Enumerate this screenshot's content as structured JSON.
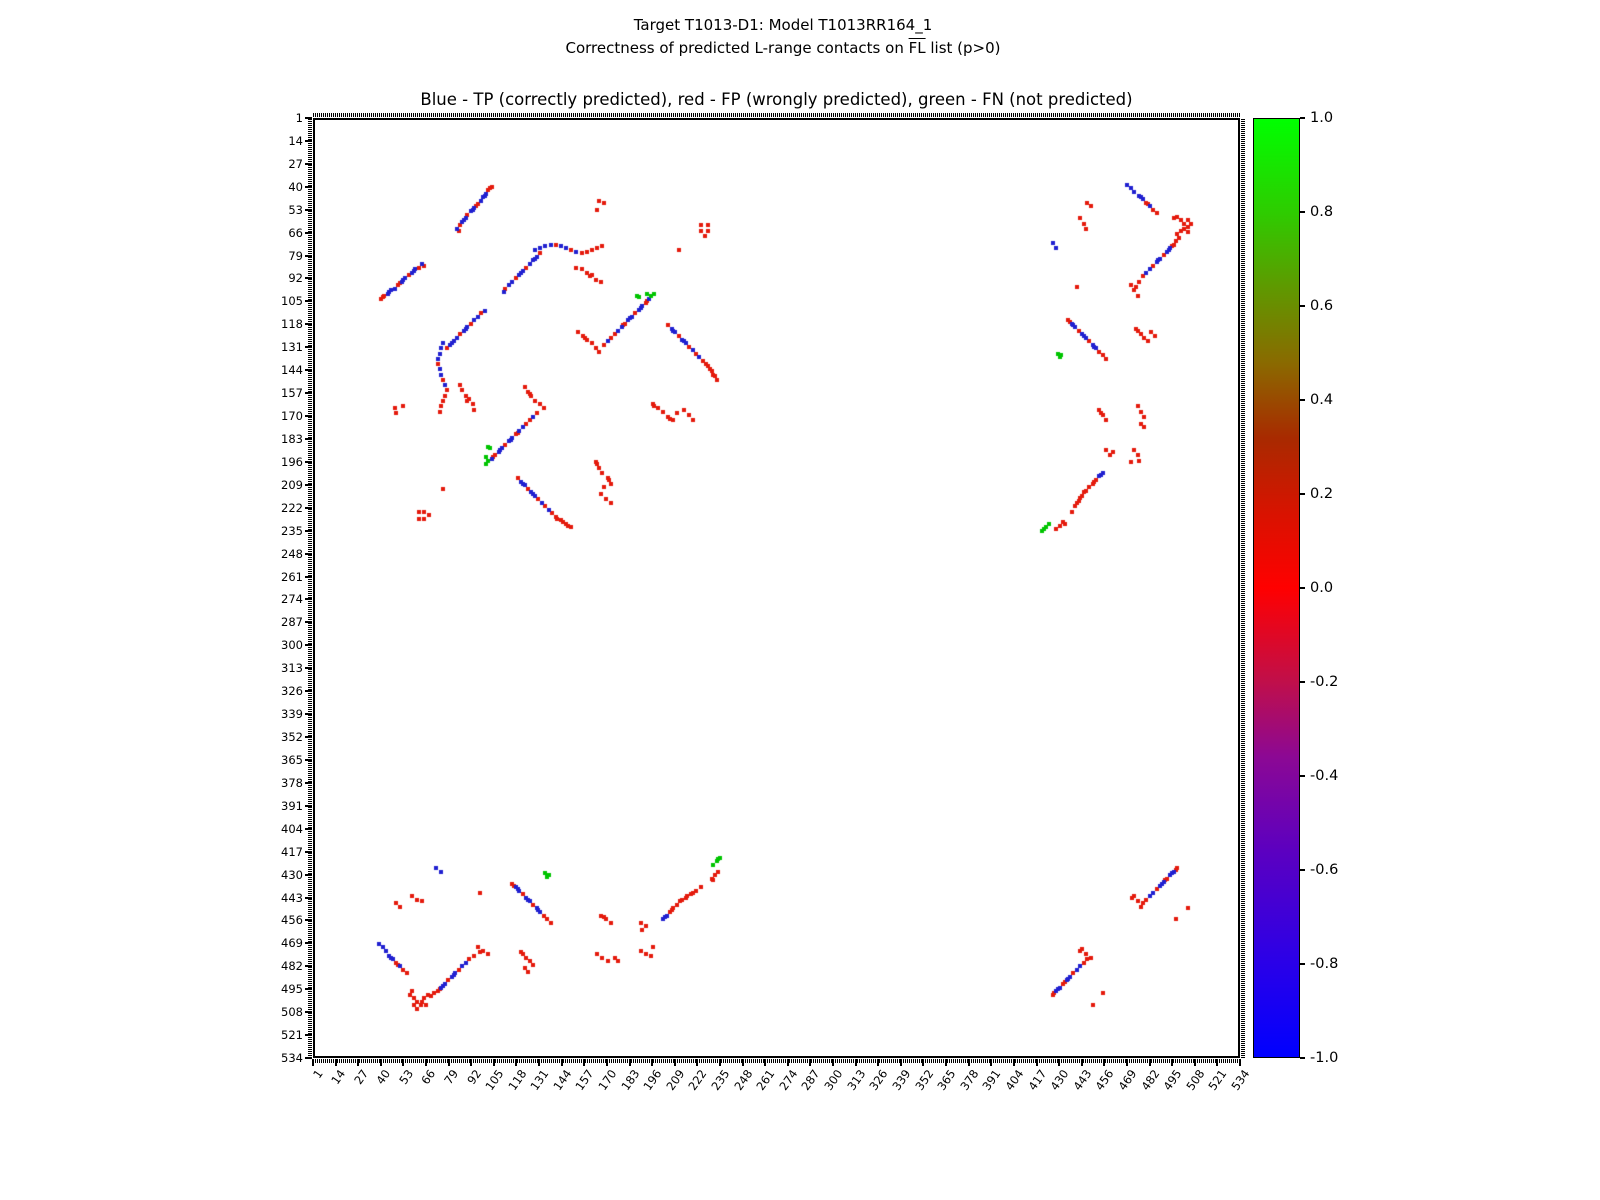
{
  "figure": {
    "suptitle1": "Target T1013-D1: Model T1013RR164_1",
    "suptitle2_pre": "Correctness of predicted L-range contacts on ",
    "suptitle2_fl": "FL",
    "suptitle2_post": " list (p>0)",
    "axes_title": "Blue - TP (correctly predicted), red - FP (wrongly predicted), green - FN (not predicted)"
  },
  "chart_data": {
    "type": "scatter",
    "title": "Blue - TP (correctly predicted), red - FP (wrongly predicted), green - FN (not predicted)",
    "xlabel": "",
    "ylabel": "",
    "axis_range": [
      1,
      534
    ],
    "y_inverted": true,
    "grid": false,
    "symmetric_mirrored": true,
    "marker": "square",
    "marker_px": 4,
    "axis_ticks": [
      1,
      14,
      27,
      40,
      53,
      66,
      79,
      92,
      105,
      118,
      131,
      144,
      157,
      170,
      183,
      196,
      209,
      222,
      235,
      248,
      261,
      274,
      287,
      300,
      313,
      326,
      339,
      352,
      365,
      378,
      391,
      404,
      417,
      430,
      443,
      456,
      469,
      482,
      495,
      508,
      521,
      534
    ],
    "series": [
      {
        "name": "TP",
        "label": "correctly predicted",
        "color": "#2020d0",
        "points": [
          [
            43,
            100
          ],
          [
            44,
            99
          ],
          [
            45,
            98
          ],
          [
            47,
            97
          ],
          [
            51,
            93
          ],
          [
            52,
            92
          ],
          [
            53,
            91
          ],
          [
            57,
            88
          ],
          [
            58,
            87
          ],
          [
            59,
            86
          ],
          [
            63,
            83
          ],
          [
            75,
            128
          ],
          [
            74,
            131
          ],
          [
            73,
            134
          ],
          [
            72,
            137
          ],
          [
            73,
            143
          ],
          [
            74,
            146
          ],
          [
            76,
            152
          ],
          [
            79,
            129
          ],
          [
            80,
            128
          ],
          [
            81,
            127
          ],
          [
            83,
            125
          ],
          [
            87,
            121
          ],
          [
            88,
            120
          ],
          [
            89,
            119
          ],
          [
            93,
            115
          ],
          [
            95,
            113
          ],
          [
            99,
            110
          ],
          [
            103,
            194
          ],
          [
            107,
            190
          ],
          [
            108,
            189
          ],
          [
            109,
            188
          ],
          [
            113,
            184
          ],
          [
            114,
            183
          ],
          [
            115,
            182
          ],
          [
            119,
            178
          ],
          [
            121,
            176
          ],
          [
            127,
            170
          ],
          [
            120,
            207
          ],
          [
            121,
            208
          ],
          [
            122,
            209
          ],
          [
            126,
            213
          ],
          [
            127,
            214
          ],
          [
            128,
            215
          ],
          [
            132,
            219
          ],
          [
            136,
            223
          ],
          [
            38,
            470
          ],
          [
            40,
            472
          ],
          [
            42,
            474
          ],
          [
            44,
            477
          ],
          [
            45,
            478
          ],
          [
            46,
            479
          ],
          [
            50,
            483
          ],
          [
            74,
            495
          ],
          [
            75,
            494
          ],
          [
            76,
            493
          ],
          [
            80,
            489
          ],
          [
            81,
            488
          ],
          [
            82,
            487
          ],
          [
            86,
            483
          ],
          [
            88,
            481
          ],
          [
            71,
            427
          ],
          [
            74,
            429
          ],
          [
            117,
            438
          ],
          [
            118,
            439
          ],
          [
            119,
            440
          ],
          [
            123,
            444
          ],
          [
            124,
            445
          ],
          [
            125,
            446
          ],
          [
            129,
            450
          ],
          [
            130,
            451
          ],
          [
            131,
            452
          ],
          [
            202,
            456
          ],
          [
            203,
            455
          ],
          [
            204,
            454
          ],
          [
            429,
            497
          ],
          [
            430,
            496
          ],
          [
            431,
            495
          ],
          [
            435,
            491
          ],
          [
            436,
            490
          ],
          [
            437,
            489
          ],
          [
            441,
            485
          ],
          [
            443,
            483
          ]
        ]
      },
      {
        "name": "FP",
        "label": "wrongly predicted",
        "color": "#e41a0c",
        "points": [
          [
            39,
            103
          ],
          [
            40,
            102
          ],
          [
            41,
            101
          ],
          [
            49,
            95
          ],
          [
            50,
            94
          ],
          [
            55,
            89
          ],
          [
            61,
            85
          ],
          [
            64,
            84
          ],
          [
            47,
            165
          ],
          [
            48,
            168
          ],
          [
            52,
            164
          ],
          [
            61,
            224
          ],
          [
            61,
            228
          ],
          [
            64,
            224
          ],
          [
            64,
            228
          ],
          [
            67,
            226
          ],
          [
            72,
            140
          ],
          [
            75,
            149
          ],
          [
            77,
            155
          ],
          [
            76,
            158
          ],
          [
            75,
            161
          ],
          [
            74,
            164
          ],
          [
            73,
            167
          ],
          [
            75,
            211
          ],
          [
            77,
            131
          ],
          [
            85,
            123
          ],
          [
            91,
            117
          ],
          [
            97,
            111
          ],
          [
            85,
            152
          ],
          [
            86,
            155
          ],
          [
            88,
            158
          ],
          [
            89,
            161
          ],
          [
            90,
            160
          ],
          [
            92,
            163
          ],
          [
            93,
            166
          ],
          [
            104,
            193
          ],
          [
            105,
            192
          ],
          [
            111,
            186
          ],
          [
            117,
            180
          ],
          [
            118,
            179
          ],
          [
            123,
            174
          ],
          [
            125,
            172
          ],
          [
            129,
            168
          ],
          [
            122,
            153
          ],
          [
            124,
            156
          ],
          [
            125,
            157
          ],
          [
            126,
            158
          ],
          [
            128,
            161
          ],
          [
            131,
            163
          ],
          [
            133,
            165
          ],
          [
            118,
            205
          ],
          [
            124,
            211
          ],
          [
            130,
            217
          ],
          [
            134,
            221
          ],
          [
            138,
            225
          ],
          [
            140,
            227
          ],
          [
            141,
            228
          ],
          [
            143,
            229
          ],
          [
            144,
            230
          ],
          [
            146,
            231
          ],
          [
            147,
            232
          ],
          [
            149,
            233
          ],
          [
            163,
            196
          ],
          [
            164,
            197
          ],
          [
            165,
            199
          ],
          [
            167,
            202
          ],
          [
            170,
            205
          ],
          [
            171,
            206
          ],
          [
            172,
            208
          ],
          [
            168,
            210
          ],
          [
            166,
            214
          ],
          [
            169,
            217
          ],
          [
            172,
            219
          ],
          [
            48,
            481
          ],
          [
            49,
            482
          ],
          [
            52,
            485
          ],
          [
            54,
            487
          ],
          [
            56,
            499
          ],
          [
            57,
            497
          ],
          [
            58,
            501
          ],
          [
            58,
            505
          ],
          [
            60,
            503
          ],
          [
            60,
            507
          ],
          [
            62,
            505
          ],
          [
            63,
            503
          ],
          [
            64,
            501
          ],
          [
            65,
            505
          ],
          [
            66,
            499
          ],
          [
            68,
            500
          ],
          [
            70,
            498
          ],
          [
            48,
            447
          ],
          [
            50,
            449
          ],
          [
            57,
            443
          ],
          [
            60,
            445
          ],
          [
            63,
            446
          ],
          [
            72,
            497
          ],
          [
            73,
            496
          ],
          [
            78,
            491
          ],
          [
            84,
            485
          ],
          [
            90,
            479
          ],
          [
            93,
            477
          ],
          [
            96,
            475
          ],
          [
            95,
            472
          ],
          [
            98,
            474
          ],
          [
            101,
            476
          ],
          [
            96,
            441
          ],
          [
            115,
            436
          ],
          [
            116,
            437
          ],
          [
            121,
            442
          ],
          [
            127,
            448
          ],
          [
            133,
            454
          ],
          [
            135,
            456
          ],
          [
            137,
            458
          ],
          [
            120,
            475
          ],
          [
            121,
            476
          ],
          [
            123,
            478
          ],
          [
            125,
            480
          ],
          [
            127,
            482
          ],
          [
            122,
            484
          ],
          [
            124,
            486
          ],
          [
            166,
            454
          ],
          [
            168,
            455
          ],
          [
            169,
            456
          ],
          [
            172,
            458
          ],
          [
            164,
            476
          ],
          [
            167,
            478
          ],
          [
            170,
            480
          ],
          [
            174,
            478
          ],
          [
            176,
            480
          ],
          [
            189,
            458
          ],
          [
            192,
            460
          ],
          [
            190,
            462
          ],
          [
            189,
            474
          ],
          [
            192,
            476
          ],
          [
            195,
            477
          ],
          [
            196,
            472
          ],
          [
            206,
            452
          ],
          [
            207,
            451
          ],
          [
            208,
            450
          ],
          [
            210,
            448
          ],
          [
            212,
            446
          ],
          [
            213,
            445
          ],
          [
            215,
            444
          ],
          [
            216,
            443
          ],
          [
            218,
            442
          ],
          [
            219,
            441
          ],
          [
            221,
            440
          ],
          [
            224,
            438
          ],
          [
            230,
            433
          ],
          [
            231,
            434
          ],
          [
            232,
            431
          ],
          [
            234,
            429
          ],
          [
            427,
            499
          ],
          [
            428,
            498
          ],
          [
            433,
            493
          ],
          [
            434,
            492
          ],
          [
            439,
            487
          ],
          [
            445,
            481
          ],
          [
            447,
            479
          ],
          [
            443,
            474
          ],
          [
            444,
            473
          ],
          [
            446,
            476
          ],
          [
            449,
            478
          ],
          [
            450,
            505
          ],
          [
            456,
            498
          ]
        ]
      },
      {
        "name": "FN",
        "label": "not predicted",
        "color": "#00c400",
        "points": [
          [
            100,
            197
          ],
          [
            101,
            195
          ],
          [
            100,
            193
          ],
          [
            102,
            188
          ],
          [
            101,
            187
          ],
          [
            134,
            430
          ],
          [
            135,
            432
          ],
          [
            136,
            431
          ],
          [
            231,
            425
          ],
          [
            233,
            423
          ],
          [
            234,
            422
          ],
          [
            235,
            421
          ]
        ]
      }
    ],
    "colorbar": {
      "min": -1.0,
      "max": 1.0,
      "ticks": [
        "1.0",
        "0.8",
        "0.6",
        "0.4",
        "0.2",
        "0.0",
        "-0.2",
        "-0.4",
        "-0.6",
        "-0.8",
        "-1.0"
      ],
      "gradient_stops": [
        {
          "pos": 0.0,
          "color": "#0000ff"
        },
        {
          "pos": 0.1,
          "color": "#2a00e8"
        },
        {
          "pos": 0.22,
          "color": "#5c00c0"
        },
        {
          "pos": 0.32,
          "color": "#8c0894"
        },
        {
          "pos": 0.4,
          "color": "#c00f4a"
        },
        {
          "pos": 0.5,
          "color": "#ff0000"
        },
        {
          "pos": 0.58,
          "color": "#d81300"
        },
        {
          "pos": 0.66,
          "color": "#a82a00"
        },
        {
          "pos": 0.74,
          "color": "#8a6a00"
        },
        {
          "pos": 0.82,
          "color": "#5f9900"
        },
        {
          "pos": 0.9,
          "color": "#2ecc00"
        },
        {
          "pos": 1.0,
          "color": "#00ff00"
        }
      ]
    }
  }
}
